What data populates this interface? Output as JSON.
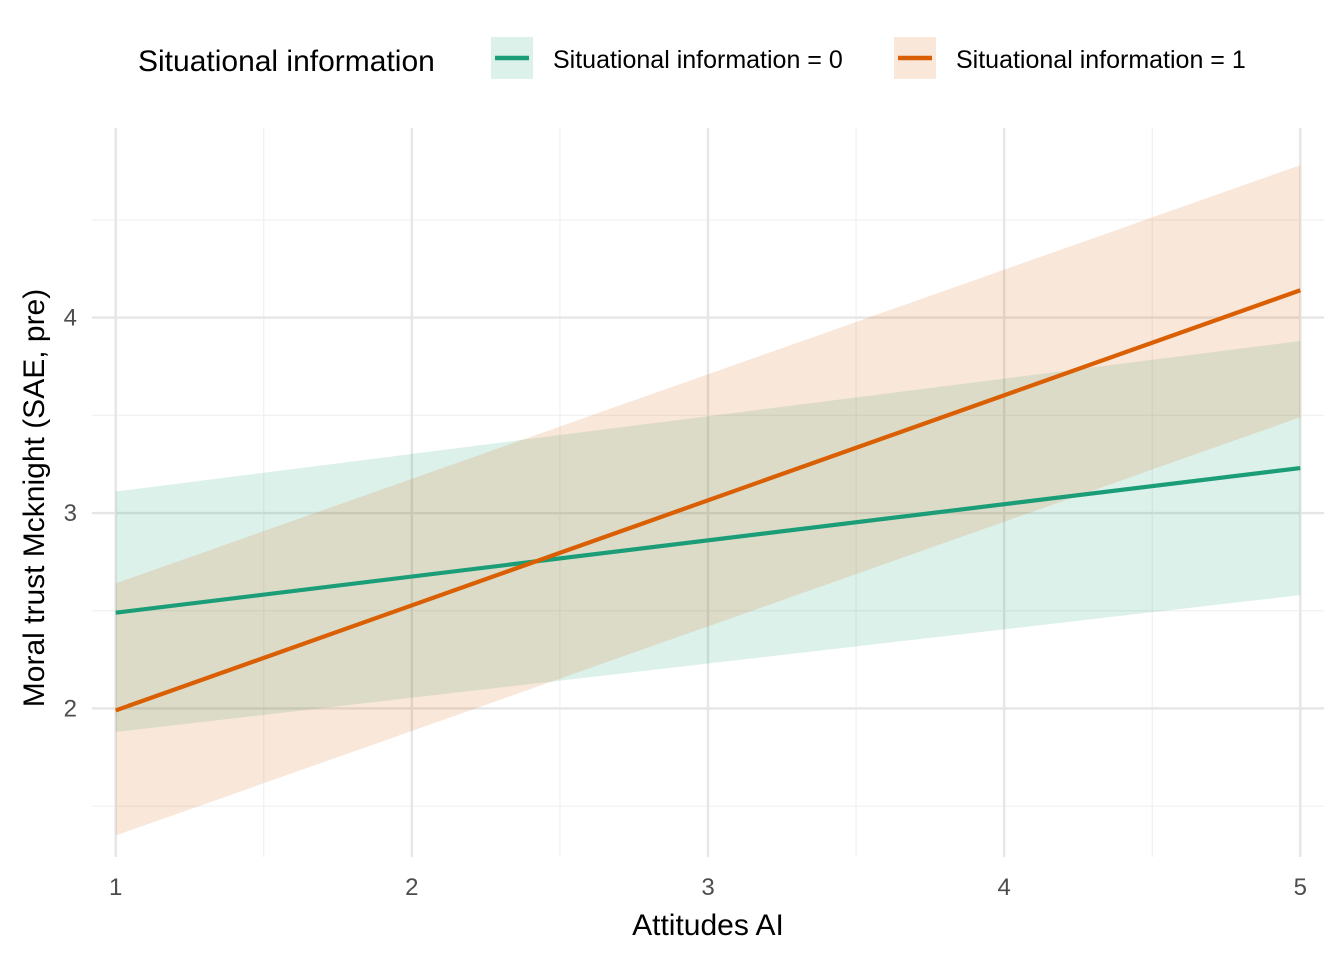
{
  "chart_data": {
    "type": "line",
    "xlabel": "Attitudes AI",
    "ylabel": "Moral trust Mcknight (SAE, pre)",
    "xlim": [
      0.92,
      5.08
    ],
    "ylim": [
      1.24,
      4.97
    ],
    "x_ticks": [
      1,
      2,
      3,
      4,
      5
    ],
    "y_ticks": [
      2,
      3,
      4
    ],
    "grid": true,
    "legend": {
      "title": "Situational information",
      "position": "top"
    },
    "series": [
      {
        "name": "Situational information = 0",
        "color": "#1b9e77",
        "x": [
          1,
          5
        ],
        "y": [
          2.49,
          3.23
        ],
        "ci_lower": [
          1.88,
          2.58
        ],
        "ci_upper": [
          3.11,
          3.88
        ]
      },
      {
        "name": "Situational information = 1",
        "color": "#d95f02",
        "x": [
          1,
          5
        ],
        "y": [
          1.99,
          4.14
        ],
        "ci_lower": [
          1.35,
          3.49
        ],
        "ci_upper": [
          2.64,
          4.78
        ]
      }
    ]
  }
}
